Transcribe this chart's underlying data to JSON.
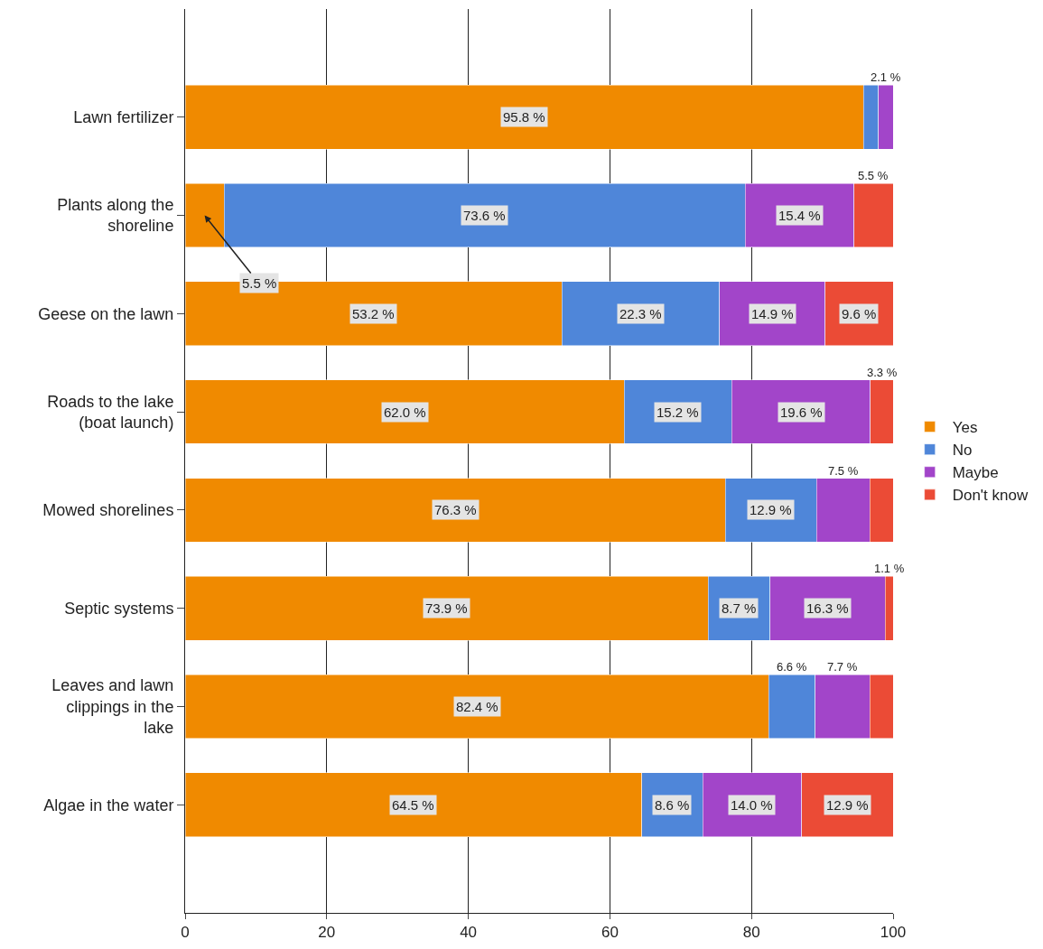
{
  "chart_data": {
    "type": "bar",
    "orientation": "horizontal",
    "stacked": true,
    "categories": [
      "Lawn fertilizer",
      "Plants along the shoreline",
      "Geese on the lawn",
      "Roads to the lake (boat launch)",
      "Mowed shorelines",
      "Septic systems",
      "Leaves and lawn clippings in the lake",
      "Algae in the water"
    ],
    "series": [
      {
        "name": "Yes",
        "color": "#f08a00",
        "values": [
          95.8,
          5.5,
          53.2,
          62.0,
          76.3,
          73.9,
          82.4,
          64.5
        ],
        "value_labels": [
          "95.8 %",
          "5.5 %",
          "53.2 %",
          "62.0 %",
          "76.3 %",
          "73.9 %",
          "82.4 %",
          "64.5 %"
        ]
      },
      {
        "name": "No",
        "color": "#4f86d9",
        "values": [
          2.1,
          73.6,
          22.3,
          15.2,
          12.9,
          8.7,
          6.6,
          8.6
        ],
        "value_labels": [
          null,
          "73.6 %",
          "22.3 %",
          "15.2 %",
          "12.9 %",
          "8.7 %",
          "6.6 %",
          "8.6 %"
        ]
      },
      {
        "name": "Maybe",
        "color": "#a245c9",
        "values": [
          2.1,
          15.4,
          14.9,
          19.6,
          7.5,
          16.3,
          7.7,
          14.0
        ],
        "value_labels": [
          "2.1 %",
          "15.4 %",
          "14.9 %",
          "19.6 %",
          "7.5 %",
          "16.3 %",
          "7.7 %",
          "14.0 %"
        ]
      },
      {
        "name": "Don't know",
        "color": "#eb4b36",
        "values": [
          null,
          5.5,
          9.6,
          3.3,
          3.3,
          1.1,
          3.3,
          12.9
        ],
        "value_labels": [
          null,
          "5.5 %",
          "9.6 %",
          "3.3 %",
          null,
          "1.1 %",
          null,
          "12.9 %"
        ]
      }
    ],
    "xlim": [
      0,
      100
    ],
    "xticks": [
      0,
      20,
      40,
      60,
      80,
      100
    ],
    "grid": "x",
    "legend": "right"
  }
}
